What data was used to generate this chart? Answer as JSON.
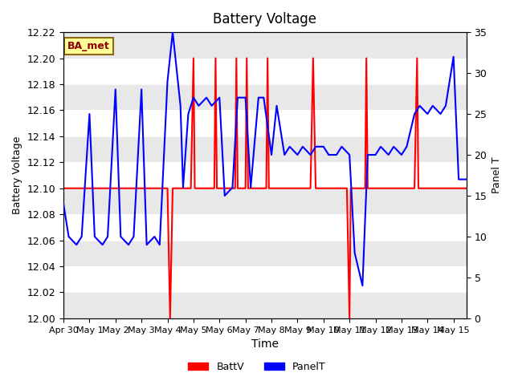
{
  "title": "Battery Voltage",
  "xlabel": "Time",
  "ylabel_left": "Battery Voltage",
  "ylabel_right": "Panel T",
  "ylim_left": [
    12.0,
    12.22
  ],
  "ylim_right": [
    0,
    35
  ],
  "xlim": [
    0,
    15.5
  ],
  "x_tick_labels": [
    "Apr 30",
    "May 1",
    "May 2",
    "May 3",
    "May 4",
    "May 5",
    "May 6",
    "May 7",
    "May 8",
    "May 9",
    "May 10",
    "May 11",
    "May 12",
    "May 13",
    "May 14",
    "May 15"
  ],
  "x_tick_positions": [
    0,
    1,
    2,
    3,
    4,
    5,
    6,
    7,
    8,
    9,
    10,
    11,
    12,
    13,
    14,
    15
  ],
  "annotation_text": "BA_met",
  "background_color": "#ffffff",
  "band_colors": [
    "#e8e8e8",
    "#ffffff"
  ],
  "batt_color": "#ff0000",
  "panel_color": "#0000ff",
  "batt_linewidth": 1.5,
  "panel_linewidth": 1.5,
  "batt_data_x": [
    0,
    0.5,
    1.0,
    1.5,
    2.0,
    2.5,
    3.0,
    3.5,
    4.0,
    4.1,
    4.2,
    4.25,
    4.3,
    4.35,
    4.5,
    4.6,
    4.7,
    4.8,
    4.9,
    5.0,
    5.05,
    5.1,
    5.2,
    5.3,
    5.4,
    5.5,
    5.6,
    5.7,
    5.8,
    5.85,
    5.9,
    5.95,
    6.0,
    6.05,
    6.1,
    6.2,
    6.3,
    6.4,
    6.5,
    6.6,
    6.65,
    6.7,
    6.75,
    6.8,
    6.85,
    6.9,
    7.0,
    7.05,
    7.1,
    7.15,
    7.2,
    7.25,
    7.3,
    7.4,
    7.5,
    7.6,
    7.7,
    7.8,
    7.85,
    7.9,
    7.95,
    8.0,
    8.1,
    8.2,
    8.3,
    8.5,
    8.6,
    8.7,
    8.9,
    9.0,
    9.5,
    9.6,
    9.7,
    9.8,
    9.9,
    10.0,
    10.1,
    10.9,
    11.0,
    11.05,
    11.1,
    11.15,
    11.2,
    11.25,
    11.3,
    11.35,
    11.4,
    11.6,
    11.65,
    11.7,
    11.75,
    11.8,
    12.0,
    12.5,
    13.0,
    13.5,
    13.6,
    13.65,
    13.7,
    13.75,
    13.8,
    14.0,
    14.5,
    15.0,
    15.5
  ],
  "batt_data_y": [
    12.1,
    12.1,
    12.1,
    12.1,
    12.1,
    12.1,
    12.1,
    12.1,
    12.1,
    12.0,
    12.1,
    12.1,
    12.1,
    12.1,
    12.1,
    12.1,
    12.1,
    12.1,
    12.1,
    12.2,
    12.1,
    12.1,
    12.1,
    12.1,
    12.1,
    12.1,
    12.1,
    12.1,
    12.1,
    12.2,
    12.1,
    12.1,
    12.1,
    12.1,
    12.1,
    12.1,
    12.1,
    12.1,
    12.1,
    12.1,
    12.2,
    12.1,
    12.1,
    12.1,
    12.1,
    12.1,
    12.1,
    12.2,
    12.1,
    12.1,
    12.1,
    12.1,
    12.1,
    12.1,
    12.1,
    12.1,
    12.1,
    12.1,
    12.2,
    12.1,
    12.1,
    12.1,
    12.1,
    12.1,
    12.1,
    12.1,
    12.1,
    12.1,
    12.1,
    12.1,
    12.1,
    12.2,
    12.1,
    12.1,
    12.1,
    12.1,
    12.1,
    12.1,
    12.0,
    12.1,
    12.1,
    12.1,
    12.1,
    12.1,
    12.1,
    12.1,
    12.1,
    12.1,
    12.2,
    12.1,
    12.1,
    12.1,
    12.1,
    12.1,
    12.1,
    12.1,
    12.2,
    12.1,
    12.1,
    12.1,
    12.1,
    12.1,
    12.1,
    12.1,
    12.1
  ],
  "panel_data_x": [
    0,
    0.2,
    0.5,
    0.7,
    1.0,
    1.2,
    1.5,
    1.7,
    2.0,
    2.2,
    2.5,
    2.7,
    3.0,
    3.2,
    3.5,
    3.7,
    4.0,
    4.2,
    4.5,
    4.6,
    4.8,
    5.0,
    5.2,
    5.5,
    5.7,
    6.0,
    6.2,
    6.5,
    6.7,
    7.0,
    7.2,
    7.5,
    7.7,
    8.0,
    8.2,
    8.5,
    8.7,
    9.0,
    9.2,
    9.5,
    9.7,
    10.0,
    10.2,
    10.5,
    10.7,
    11.0,
    11.2,
    11.5,
    11.7,
    12.0,
    12.2,
    12.5,
    12.7,
    13.0,
    13.2,
    13.5,
    13.7,
    14.0,
    14.2,
    14.5,
    14.7,
    15.0,
    15.2,
    15.5
  ],
  "panel_data_y": [
    14,
    10,
    9,
    10,
    25,
    10,
    9,
    10,
    28,
    10,
    9,
    10,
    28,
    9,
    10,
    9,
    29,
    35,
    26,
    16,
    25,
    27,
    26,
    27,
    26,
    27,
    15,
    16,
    27,
    27,
    16,
    27,
    27,
    20,
    26,
    20,
    21,
    20,
    21,
    20,
    21,
    21,
    20,
    20,
    21,
    20,
    8,
    4,
    20,
    20,
    21,
    20,
    21,
    20,
    21,
    25,
    26,
    25,
    26,
    25,
    26,
    32,
    17,
    17
  ]
}
